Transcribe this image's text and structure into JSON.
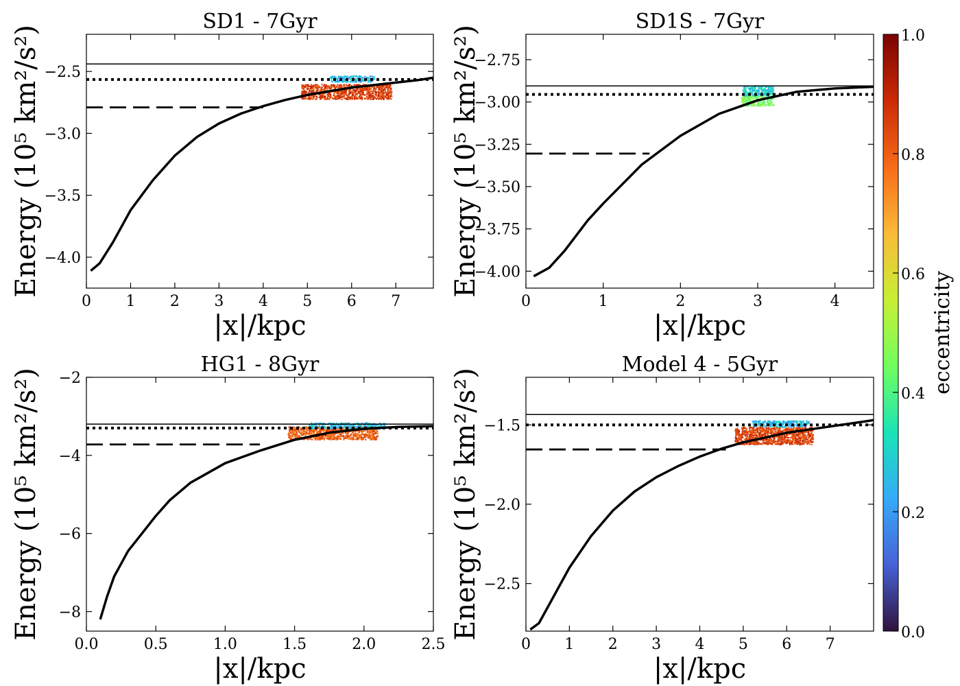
{
  "chart_data": [
    {
      "type": "scatter",
      "title": "SD1 - 7Gyr",
      "xlabel": "|x|/kpc",
      "ylabel": "Energy (10⁵ km²/s²)",
      "xlim": [
        0,
        7.85
      ],
      "ylim": [
        -4.25,
        -2.2
      ],
      "xticks": [
        0,
        1,
        2,
        3,
        4,
        5,
        6,
        7
      ],
      "xtick_labels": [
        "0",
        "1",
        "2",
        "3",
        "4",
        "5",
        "6",
        "7"
      ],
      "yticks": [
        -4.0,
        -3.5,
        -3.0,
        -2.5
      ],
      "ytick_labels": [
        "−4.0",
        "−3.5",
        "−3.0",
        "−2.5"
      ],
      "series": [
        {
          "name": "potential curve",
          "style": "solid-thick",
          "x": [
            0.1,
            0.3,
            0.6,
            1.0,
            1.5,
            2.0,
            2.5,
            3.0,
            3.5,
            4.0,
            4.5,
            5.0,
            5.5,
            6.0,
            6.5,
            7.0,
            7.5,
            7.85
          ],
          "y": [
            -4.11,
            -4.05,
            -3.88,
            -3.62,
            -3.38,
            -3.18,
            -3.03,
            -2.92,
            -2.84,
            -2.78,
            -2.73,
            -2.69,
            -2.66,
            -2.63,
            -2.61,
            -2.59,
            -2.57,
            -2.55
          ]
        },
        {
          "name": "solid line",
          "style": "solid-thin",
          "x": [
            0,
            7.85
          ],
          "y": [
            -2.44,
            -2.44
          ]
        },
        {
          "name": "dotted line",
          "style": "dotted",
          "x": [
            0,
            7.85
          ],
          "y": [
            -2.565,
            -2.565
          ]
        },
        {
          "name": "dashed line",
          "style": "dashed",
          "x": [
            0,
            4.0
          ],
          "y": [
            -2.79,
            -2.79
          ]
        }
      ],
      "particles": [
        {
          "label": "high-eccentricity block",
          "x_range": [
            4.85,
            6.9
          ],
          "y_range": [
            -2.72,
            -2.6
          ],
          "eccentricity": 0.85
        },
        {
          "label": "low-eccentricity tail",
          "x_range": [
            5.5,
            6.5
          ],
          "y_range": [
            -2.58,
            -2.53
          ],
          "eccentricity": 0.25
        }
      ]
    },
    {
      "type": "scatter",
      "title": "SD1S - 7Gyr",
      "xlabel": "|x|/kpc",
      "ylabel": "Energy (10⁵ km²/s²)",
      "xlim": [
        0,
        4.5
      ],
      "ylim": [
        -4.1,
        -2.6
      ],
      "xticks": [
        0,
        1,
        2,
        3,
        4
      ],
      "xtick_labels": [
        "0",
        "1",
        "2",
        "3",
        "4"
      ],
      "yticks": [
        -4.0,
        -3.75,
        -3.5,
        -3.25,
        -3.0,
        -2.75
      ],
      "ytick_labels": [
        "−4.00",
        "−3.75",
        "−3.50",
        "−3.25",
        "−3.00",
        "−2.75"
      ],
      "series": [
        {
          "name": "potential curve",
          "style": "solid-thick",
          "x": [
            0.1,
            0.3,
            0.5,
            0.8,
            1.0,
            1.5,
            2.0,
            2.5,
            3.0,
            3.5,
            4.0,
            4.5
          ],
          "y": [
            -4.03,
            -3.98,
            -3.88,
            -3.7,
            -3.6,
            -3.37,
            -3.2,
            -3.07,
            -2.99,
            -2.94,
            -2.92,
            -2.91
          ]
        },
        {
          "name": "solid line",
          "style": "solid-thin",
          "x": [
            0,
            4.5
          ],
          "y": [
            -2.905,
            -2.905
          ]
        },
        {
          "name": "dotted line",
          "style": "dotted",
          "x": [
            0,
            4.5
          ],
          "y": [
            -2.955,
            -2.955
          ]
        },
        {
          "name": "dashed line",
          "style": "dashed",
          "x": [
            0,
            1.6
          ],
          "y": [
            -3.305,
            -3.305
          ]
        }
      ],
      "particles": [
        {
          "label": "mid-eccentricity block",
          "x_range": [
            2.78,
            3.2
          ],
          "y_range": [
            -3.02,
            -2.96
          ],
          "eccentricity": 0.45
        },
        {
          "label": "low-eccentricity tail",
          "x_range": [
            2.8,
            3.2
          ],
          "y_range": [
            -2.96,
            -2.9
          ],
          "eccentricity": 0.3
        }
      ]
    },
    {
      "type": "scatter",
      "title": "HG1 - 8Gyr",
      "xlabel": "|x|/kpc",
      "ylabel": "Energy (10⁵ km²/s²)",
      "xlim": [
        0,
        2.5
      ],
      "ylim": [
        -8.5,
        -2.0
      ],
      "xticks": [
        0.0,
        0.5,
        1.0,
        1.5,
        2.0,
        2.5
      ],
      "xtick_labels": [
        "0.0",
        "0.5",
        "1.0",
        "1.5",
        "2.0",
        "2.5"
      ],
      "yticks": [
        -8,
        -6,
        -4,
        -2
      ],
      "ytick_labels": [
        "−8",
        "−6",
        "−4",
        "−2"
      ],
      "series": [
        {
          "name": "potential curve",
          "style": "solid-thick",
          "x": [
            0.1,
            0.15,
            0.2,
            0.3,
            0.4,
            0.5,
            0.6,
            0.75,
            1.0,
            1.25,
            1.5,
            1.75,
            2.0,
            2.25,
            2.5
          ],
          "y": [
            -8.2,
            -7.6,
            -7.1,
            -6.45,
            -6.0,
            -5.55,
            -5.15,
            -4.7,
            -4.2,
            -3.88,
            -3.6,
            -3.42,
            -3.32,
            -3.27,
            -3.25
          ]
        },
        {
          "name": "solid line",
          "style": "solid-thin",
          "x": [
            0,
            2.5
          ],
          "y": [
            -3.2,
            -3.2
          ]
        },
        {
          "name": "dotted line",
          "style": "dotted",
          "x": [
            0,
            2.5
          ],
          "y": [
            -3.3,
            -3.3
          ]
        },
        {
          "name": "dashed line",
          "style": "dashed",
          "x": [
            0,
            1.25
          ],
          "y": [
            -3.72,
            -3.72
          ]
        }
      ],
      "particles": [
        {
          "label": "high-eccentricity block",
          "x_range": [
            1.45,
            2.1
          ],
          "y_range": [
            -3.58,
            -3.25
          ],
          "eccentricity": 0.8
        },
        {
          "label": "low-eccentricity tail",
          "x_range": [
            1.6,
            2.15
          ],
          "y_range": [
            -3.3,
            -3.15
          ],
          "eccentricity": 0.25
        }
      ]
    },
    {
      "type": "scatter",
      "title": "Model 4 - 5Gyr",
      "xlabel": "|x|/kpc",
      "ylabel": "Energy (10⁵ km²/s²)",
      "xlim": [
        0,
        8.0
      ],
      "ylim": [
        -2.8,
        -1.2
      ],
      "xticks": [
        0,
        1,
        2,
        3,
        4,
        5,
        6,
        7
      ],
      "xtick_labels": [
        "0",
        "1",
        "2",
        "3",
        "4",
        "5",
        "6",
        "7"
      ],
      "yticks": [
        -2.5,
        -2.0,
        -1.5
      ],
      "ytick_labels": [
        "−2.5",
        "−2.0",
        "−1.5"
      ],
      "series": [
        {
          "name": "potential curve",
          "style": "solid-thick",
          "x": [
            0.1,
            0.3,
            0.6,
            1.0,
            1.5,
            2.0,
            2.5,
            3.0,
            3.5,
            4.0,
            4.5,
            5.0,
            5.5,
            6.0,
            6.5,
            7.0,
            7.5,
            8.0
          ],
          "y": [
            -2.79,
            -2.75,
            -2.6,
            -2.4,
            -2.2,
            -2.04,
            -1.92,
            -1.83,
            -1.76,
            -1.7,
            -1.65,
            -1.61,
            -1.58,
            -1.55,
            -1.53,
            -1.51,
            -1.49,
            -1.47
          ]
        },
        {
          "name": "solid line",
          "style": "solid-thin",
          "x": [
            0,
            8.0
          ],
          "y": [
            -1.435,
            -1.435
          ]
        },
        {
          "name": "dotted line",
          "style": "dotted",
          "x": [
            0,
            8.0
          ],
          "y": [
            -1.5,
            -1.5
          ]
        },
        {
          "name": "dashed line",
          "style": "dashed",
          "x": [
            0,
            4.6
          ],
          "y": [
            -1.655,
            -1.655
          ]
        }
      ],
      "particles": [
        {
          "label": "high-eccentricity block",
          "x_range": [
            4.8,
            6.6
          ],
          "y_range": [
            -1.62,
            -1.51
          ],
          "eccentricity": 0.85
        },
        {
          "label": "low-eccentricity tail",
          "x_range": [
            5.2,
            6.5
          ],
          "y_range": [
            -1.51,
            -1.47
          ],
          "eccentricity": 0.25
        }
      ]
    }
  ],
  "colorbar": {
    "label": "eccentricity",
    "range": [
      0.0,
      1.0
    ],
    "ticks": [
      0.0,
      0.2,
      0.4,
      0.6,
      0.8,
      1.0
    ],
    "tick_labels": [
      "0.0",
      "0.2",
      "0.4",
      "0.6",
      "0.8",
      "1.0"
    ],
    "colormap": [
      "#30123b",
      "#4662d8",
      "#36aaf9",
      "#1ae4b6",
      "#72fe5e",
      "#c8ef34",
      "#faba39",
      "#f66b19",
      "#cb2a04",
      "#7a0403"
    ]
  }
}
